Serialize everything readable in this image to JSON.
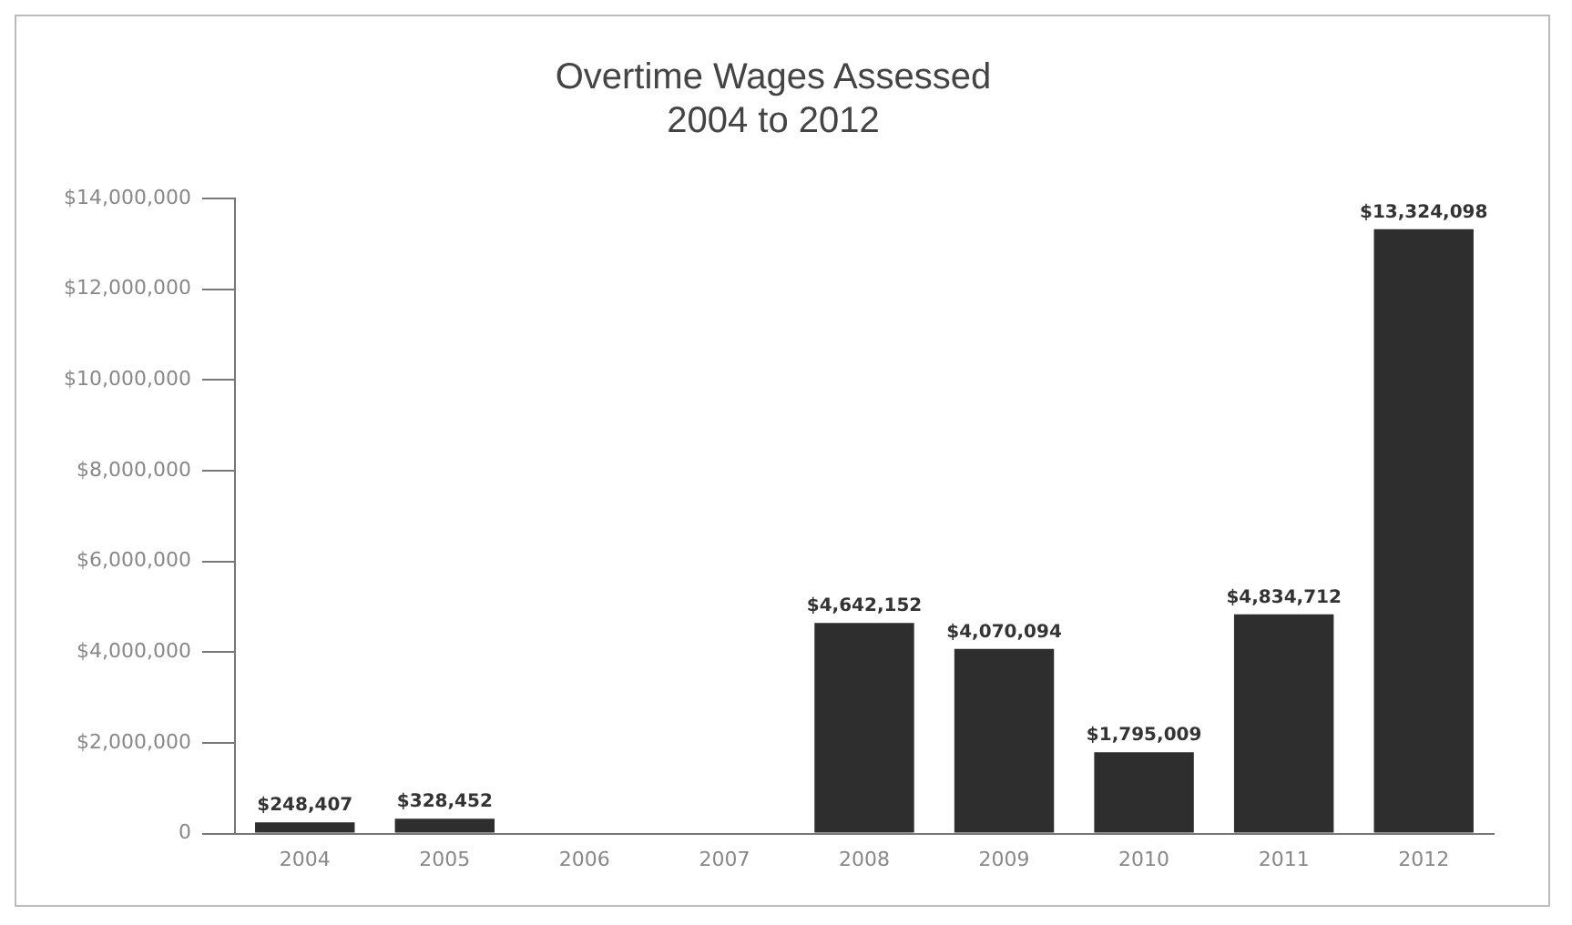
{
  "chart_data": {
    "type": "bar",
    "title": "Overtime Wages Assessed\n2004 to 2012",
    "categories": [
      "2004",
      "2005",
      "2006",
      "2007",
      "2008",
      "2009",
      "2010",
      "2011",
      "2012"
    ],
    "values": [
      248407,
      328452,
      null,
      null,
      4642152,
      4070094,
      1795009,
      4834712,
      13324098
    ],
    "value_labels": [
      "$248,407",
      "$328,452",
      null,
      null,
      "$4,642,152",
      "$4,070,094",
      "$1,795,009",
      "$4,834,712",
      "$13,324,098"
    ],
    "color": "#2e2e2e",
    "ylim": [
      0,
      14000000
    ],
    "yticks": [
      {
        "value": 0,
        "label": "0"
      },
      {
        "value": 2000000,
        "label": "$2,000,000"
      },
      {
        "value": 4000000,
        "label": "$4,000,000"
      },
      {
        "value": 6000000,
        "label": "$6,000,000"
      },
      {
        "value": 8000000,
        "label": "$8,000,000"
      },
      {
        "value": 10000000,
        "label": "$10,000,000"
      },
      {
        "value": 12000000,
        "label": "$12,000,000"
      },
      {
        "value": 14000000,
        "label": "$14,000,000"
      }
    ],
    "grid": false,
    "legend": false
  }
}
